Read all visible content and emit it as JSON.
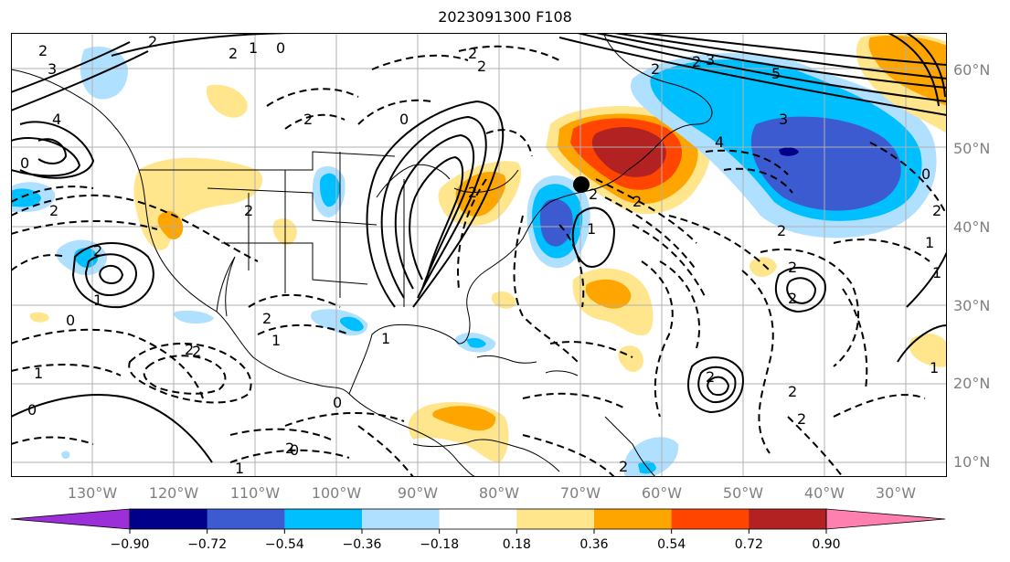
{
  "title": "2023091300 F108",
  "map": {
    "projection": "PlateCarree",
    "lon_range": [
      -140,
      -25
    ],
    "lat_range": [
      7,
      65
    ],
    "grid": true,
    "lon_labels": [
      "130°W",
      "120°W",
      "110°W",
      "100°W",
      "90°W",
      "80°W",
      "70°W",
      "60°W",
      "50°W",
      "40°W",
      "30°W"
    ],
    "lat_labels": [
      "60°N",
      "50°N",
      "40°N",
      "30°N",
      "20°N",
      "10°N"
    ],
    "contour_labels": [
      "2",
      "2",
      "2",
      "3",
      "0",
      "4",
      "5",
      "0",
      "2",
      "2",
      "1",
      "2",
      "1",
      "0",
      "2",
      "0",
      "2",
      "2",
      "1",
      "3",
      "1",
      "2",
      "2",
      "2",
      "2",
      "1",
      "3",
      "4",
      "0",
      "2",
      "2",
      "1",
      "0",
      "1",
      "2",
      "1",
      "2",
      "2",
      "2",
      "2",
      "2",
      "2",
      "2",
      "2",
      "1",
      "0",
      "0",
      "2",
      "2",
      "1"
    ]
  },
  "colorbar": {
    "ticks": [
      "−0.90",
      "−0.72",
      "−0.54",
      "−0.36",
      "−0.18",
      "0.18",
      "0.36",
      "0.54",
      "0.72",
      "0.90"
    ],
    "colors": [
      "#9b30d9",
      "#00008b",
      "#3c5bd1",
      "#00bfff",
      "#b0e0ff",
      "#ffffff",
      "#ffe68c",
      "#ffa500",
      "#ff4500",
      "#b22222",
      "#ff7fae"
    ]
  }
}
